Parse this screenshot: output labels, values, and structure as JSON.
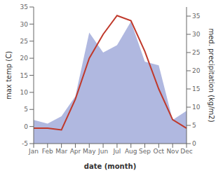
{
  "chart_data": {
    "type": "line",
    "categories": [
      "Jan",
      "Feb",
      "Mar",
      "Apr",
      "May",
      "Jun",
      "Jul",
      "Aug",
      "Sep",
      "Oct",
      "Nov",
      "Dec"
    ],
    "series": [
      {
        "type": "area",
        "axis": "y2",
        "color": "#b0b8e0",
        "values": [
          6.5,
          5.5,
          7.5,
          13.0,
          30.5,
          25.0,
          27.0,
          33.5,
          22.5,
          21.5,
          6.5,
          9.0
        ]
      },
      {
        "type": "line",
        "axis": "y",
        "color": "#c0392b",
        "values": [
          -0.5,
          -0.5,
          -1.0,
          8.0,
          20.0,
          27.0,
          32.5,
          31.0,
          22.0,
          11.0,
          2.0,
          -0.5
        ]
      }
    ],
    "x_label": "date (month)",
    "y_label": "max temp (C)",
    "y2_label": "med. precipitation (kg/m2)",
    "ylim": [
      -5,
      35
    ],
    "yticks": [
      -5,
      0,
      5,
      10,
      15,
      20,
      25,
      30,
      35
    ],
    "y2lim": [
      0,
      37.5
    ],
    "y2ticks": [
      0,
      5,
      10,
      15,
      20,
      25,
      30,
      35
    ],
    "grid": false
  }
}
